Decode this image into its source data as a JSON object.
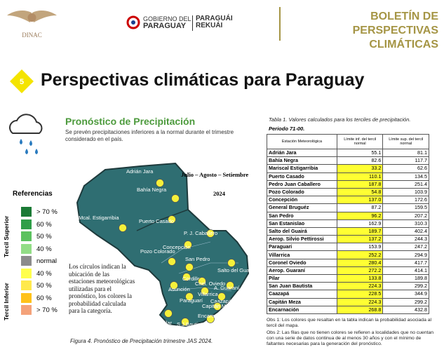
{
  "header": {
    "logo": "DINAC",
    "gov_line1": "GOBIERNO DEL",
    "gov_line2": "PARAGUAY",
    "rekuai_line1": "PARAGUÁI",
    "rekuai_line2": "REKUÁI",
    "bulletin_title": "BOLETÍN DE PERSPECTIVAS CLIMÁTICAS"
  },
  "section": {
    "number": "5",
    "title": "Perspectivas climáticas para Paraguay"
  },
  "forecast": {
    "subtitle": "Pronóstico de Precipitación",
    "description": "Se prevén precipitaciones inferiores a la normal durante el trimestre considerado en el país.",
    "period": "Julio – Agosto – Setiembre",
    "year": "2024",
    "caption": "Figura 4. Pronóstico de Precipitación trimestre JAS 2024.",
    "map_note": "Los círculos indican la ubicación de las estaciones meteorológicas utilizadas para el pronóstico, los colores la probabilidad calculada para la categoría.",
    "map_labels": [
      "Adrián Jara",
      "Bahía Negra",
      "Mcal. Estigarribia",
      "Puerto Casado",
      "P. J. Caballero",
      "Concepción",
      "Pozo Colorado",
      "San Pedro",
      "Salto del Guairá",
      "Cordillera",
      "Asunción",
      "Cnel. Oviedo",
      "A. Guaraní",
      "Paraguarí",
      "Villarrica",
      "Caazapá",
      "Capitán Meza",
      "Encarnación",
      "Pilar",
      "S.J.Bautista"
    ]
  },
  "legend": {
    "title": "Referencias",
    "upper_label": "Tercil Superior",
    "lower_label": "Tercil Inferior",
    "items": [
      {
        "label": "> 70 %",
        "color": "#1a7a35"
      },
      {
        "label": "60 %",
        "color": "#2f9e48"
      },
      {
        "label": "50 %",
        "color": "#5cc25f"
      },
      {
        "label": "40 %",
        "color": "#92dd86"
      },
      {
        "label": "normal",
        "color": "#8c8c8c"
      },
      {
        "label": "40 %",
        "color": "#ffff4d"
      },
      {
        "label": "50 %",
        "color": "#ffe94d"
      },
      {
        "label": "60 %",
        "color": "#ffc21a"
      },
      {
        "label": "> 70 %",
        "color": "#f4a27a"
      }
    ]
  },
  "table": {
    "title": "Tabla 1. Valores calculados para los terciles de precipitación.",
    "period": "Periodo 71-00.",
    "headers": [
      "Estación Meteorológica",
      "Límite inf. del tercil normal",
      "Límite sup. del tercil normal"
    ],
    "rows": [
      {
        "station": "Adrián Jara",
        "lower": "55.1",
        "upper": "81.1"
      },
      {
        "station": "Bahía Negra",
        "lower": "82.6",
        "upper": "117.7"
      },
      {
        "station": "Mariscal Estigarribia",
        "lower": "33.2",
        "upper": "62.6",
        "color": "#ffff33"
      },
      {
        "station": "Puerto Casado",
        "lower": "110.1",
        "upper": "134.5",
        "color": "#ffff33"
      },
      {
        "station": "Pedro Juan Caballero",
        "lower": "187.8",
        "upper": "251.4",
        "color": "#ffff33"
      },
      {
        "station": "Pozo Colorado",
        "lower": "54.8",
        "upper": "103.9",
        "color": "#ffff33"
      },
      {
        "station": "Concepción",
        "lower": "137.0",
        "upper": "172.6",
        "color": "#ffff33"
      },
      {
        "station": "General Bruguéz",
        "lower": "87.2",
        "upper": "159.5"
      },
      {
        "station": "San Pedro",
        "lower": "96.2",
        "upper": "207.2",
        "color": "#ffff33"
      },
      {
        "station": "San Estanislao",
        "lower": "162.9",
        "upper": "310.3"
      },
      {
        "station": "Salto del Guairá",
        "lower": "189.7",
        "upper": "402.4",
        "color": "#ffff33"
      },
      {
        "station": "Aerop. Silvio Pettirossi",
        "lower": "137.2",
        "upper": "244.3",
        "color": "#ffff33"
      },
      {
        "station": "Paraguarí",
        "lower": "153.9",
        "upper": "247.2"
      },
      {
        "station": "Villarrica",
        "lower": "252.2",
        "upper": "294.9",
        "color": "#ffff33"
      },
      {
        "station": "Coronel Oviedo",
        "lower": "280.4",
        "upper": "417.7",
        "color": "#ffff33"
      },
      {
        "station": "Aerop. Guaraní",
        "lower": "272.2",
        "upper": "414.1",
        "color": "#ffff33"
      },
      {
        "station": "Pilar",
        "lower": "133.8",
        "upper": "189.8",
        "color": "#ffff33"
      },
      {
        "station": "San Juan Bautista",
        "lower": "224.3",
        "upper": "299.2",
        "color": "#ffff33"
      },
      {
        "station": "Caazapá",
        "lower": "228.5",
        "upper": "344.9",
        "color": "#ffff33"
      },
      {
        "station": "Capitán Meza",
        "lower": "224.3",
        "upper": "299.2",
        "color": "#ffff33"
      },
      {
        "station": "Encarnación",
        "lower": "268.8",
        "upper": "432.8",
        "color": "#ffff33"
      }
    ],
    "note1": "Obs 1: Los colores que resaltan en la tabla indican la probabilidad asociada al tercil del mapa.",
    "note2": "Obs 2: Las filas que no tienen colores se refieren a localidades que no cuentan con una serie de datos continua de al menos 30 años y con el mínimo de faltantes necesarias para la generación del pronóstico."
  }
}
